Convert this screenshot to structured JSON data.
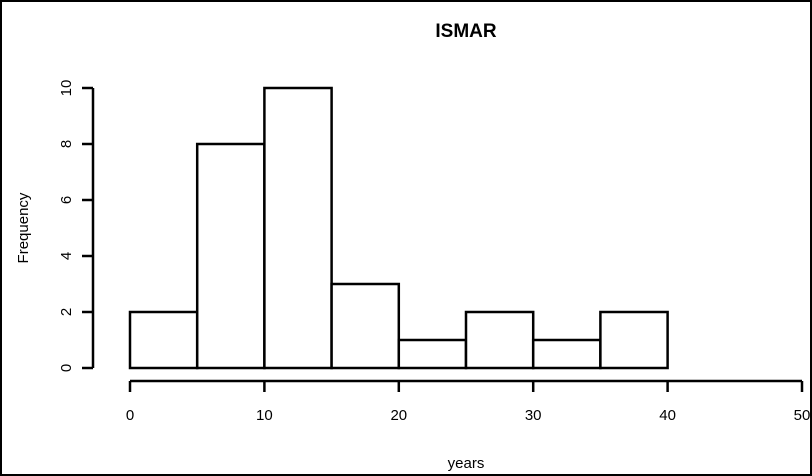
{
  "chart_data": {
    "type": "bar",
    "title": "ISMAR",
    "xlabel": "years",
    "ylabel": "Frequency",
    "bins": [
      {
        "x_start": 0,
        "x_end": 5,
        "value": 2
      },
      {
        "x_start": 5,
        "x_end": 10,
        "value": 8
      },
      {
        "x_start": 10,
        "x_end": 15,
        "value": 10
      },
      {
        "x_start": 15,
        "x_end": 20,
        "value": 3
      },
      {
        "x_start": 20,
        "x_end": 25,
        "value": 1
      },
      {
        "x_start": 25,
        "x_end": 30,
        "value": 2
      },
      {
        "x_start": 30,
        "x_end": 35,
        "value": 1
      },
      {
        "x_start": 35,
        "x_end": 40,
        "value": 2
      }
    ],
    "xlim": [
      0,
      50
    ],
    "ylim": [
      0,
      10
    ],
    "x_ticks": [
      0,
      10,
      20,
      30,
      40,
      50
    ],
    "y_ticks": [
      0,
      2,
      4,
      6,
      8,
      10
    ],
    "x_tick_labels": [
      "0",
      "10",
      "20",
      "30",
      "40",
      "50"
    ],
    "y_tick_labels": [
      "0",
      "2",
      "4",
      "6",
      "8",
      "10"
    ],
    "grid": false,
    "legend": "none",
    "colors": {
      "bar_fill": "#ffffff",
      "bar_stroke": "#000000"
    }
  }
}
